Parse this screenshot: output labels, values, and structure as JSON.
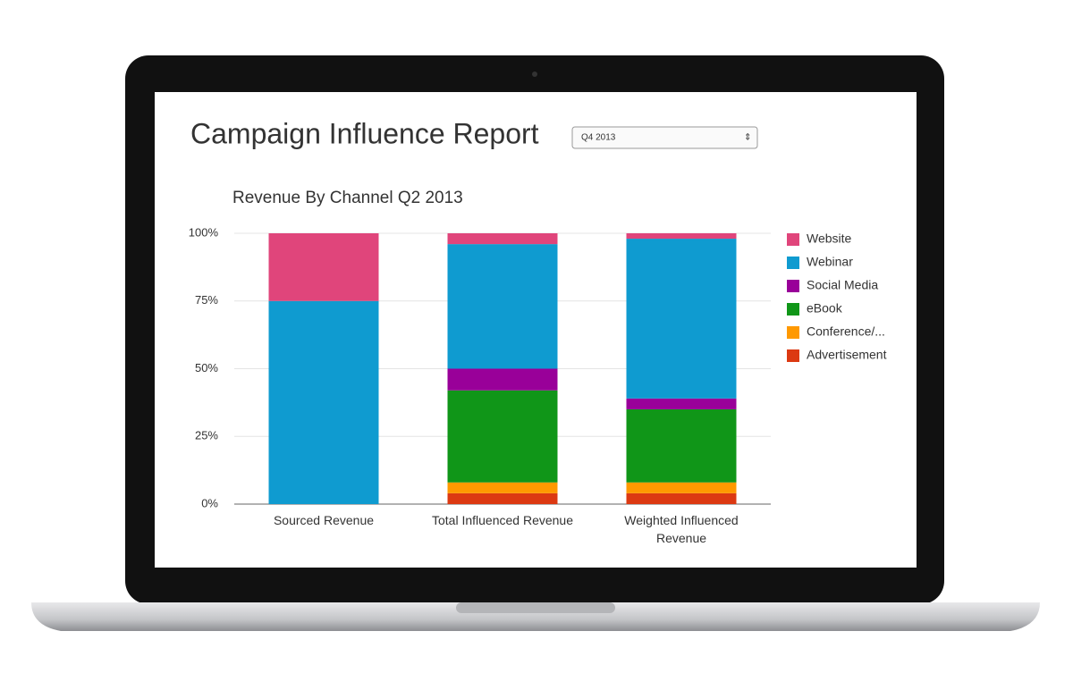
{
  "header": {
    "title": "Campaign Influence Report",
    "dropdown": "Q4 2013"
  },
  "chart_data": {
    "type": "stacked-bar",
    "title": "Revenue By Channel Q2 2013",
    "categories": [
      "Sourced Revenue",
      "Total Influenced Revenue",
      "Weighted Influenced Revenue"
    ],
    "series": [
      {
        "name": "Advertisement",
        "color": "#dc3912",
        "values": [
          0,
          4,
          4
        ]
      },
      {
        "name": "Conference/...",
        "color": "#ff9900",
        "values": [
          0,
          4,
          4
        ]
      },
      {
        "name": "eBook",
        "color": "#109618",
        "values": [
          0,
          34,
          27
        ]
      },
      {
        "name": "Social Media",
        "color": "#990099",
        "values": [
          0,
          8,
          4
        ]
      },
      {
        "name": "Webinar",
        "color": "#0f9bd0",
        "values": [
          75,
          46,
          59
        ]
      },
      {
        "name": "Website",
        "color": "#e0457b",
        "values": [
          25,
          4,
          2
        ]
      }
    ],
    "ylim": [
      0,
      100
    ],
    "yticks": [
      {
        "value": 0,
        "label": "0%"
      },
      {
        "value": 25,
        "label": "25%"
      },
      {
        "value": 50,
        "label": "50%"
      },
      {
        "value": 75,
        "label": "75%"
      },
      {
        "value": 100,
        "label": "100%"
      }
    ],
    "grid": true,
    "legend": "right"
  }
}
